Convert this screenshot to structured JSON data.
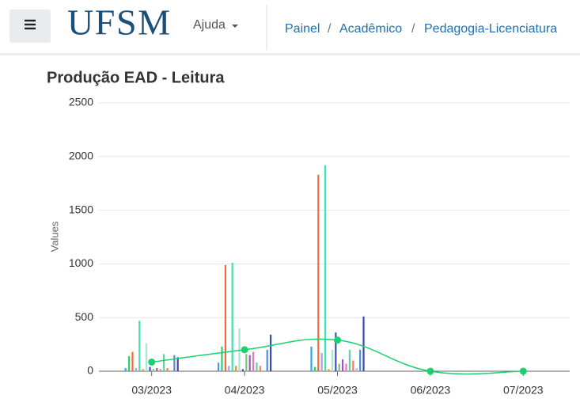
{
  "header": {
    "brand": "UFSM",
    "help": "Ajuda",
    "breadcrumb": [
      "Painel",
      "Acadêmico",
      "Pedagogia-Licenciatura"
    ],
    "separator": "/"
  },
  "chart_data": {
    "type": "bar",
    "title": "Produção EAD - Leitura",
    "y_label": "Values",
    "categories": [
      "03/2023",
      "04/2023",
      "05/2023",
      "06/2023",
      "07/2023"
    ],
    "ylim": [
      0,
      2500
    ],
    "yticks": [
      0,
      500,
      1000,
      1500,
      2000,
      2500
    ],
    "grid": true,
    "series": [
      {
        "color": "#36a2eb",
        "values": [
          30,
          80,
          230,
          null,
          null
        ]
      },
      {
        "color": "#2ecc71",
        "values": [
          140,
          230,
          40,
          null,
          null
        ]
      },
      {
        "color": "#f26b38",
        "values": [
          180,
          990,
          1830,
          null,
          null
        ]
      },
      {
        "color": "#b39ddb",
        "values": [
          30,
          50,
          170,
          null,
          null
        ]
      },
      {
        "color": "#40e0b0",
        "values": [
          470,
          1010,
          1920,
          null,
          null
        ]
      },
      {
        "color": "#f7931e",
        "values": [
          20,
          50,
          20,
          null,
          null
        ]
      },
      {
        "color": "#a8e6cf",
        "values": [
          260,
          400,
          200,
          null,
          null
        ]
      },
      {
        "color": "#3f51b5",
        "values": [
          40,
          20,
          360,
          null,
          null
        ]
      },
      {
        "color": "#7fbf7f",
        "values": [
          20,
          160,
          70,
          null,
          null
        ]
      },
      {
        "color": "#9b59b6",
        "values": [
          30,
          150,
          110,
          null,
          null
        ]
      },
      {
        "color": "#e377c2",
        "values": [
          20,
          180,
          70,
          null,
          null
        ]
      },
      {
        "color": "#5dd39e",
        "values": [
          160,
          80,
          200,
          null,
          null
        ]
      },
      {
        "color": "#ff7f50",
        "values": [
          30,
          50,
          100,
          null,
          null
        ]
      },
      {
        "color": "#bdbdbd",
        "values": [
          0,
          0,
          30,
          null,
          null
        ]
      },
      {
        "color": "#4a90e2",
        "values": [
          150,
          200,
          200,
          null,
          null
        ]
      },
      {
        "color": "#3949ab",
        "values": [
          130,
          340,
          510,
          null,
          null
        ]
      }
    ],
    "line": {
      "color": "#18d26e",
      "values": [
        85,
        200,
        290,
        0,
        0
      ]
    }
  }
}
